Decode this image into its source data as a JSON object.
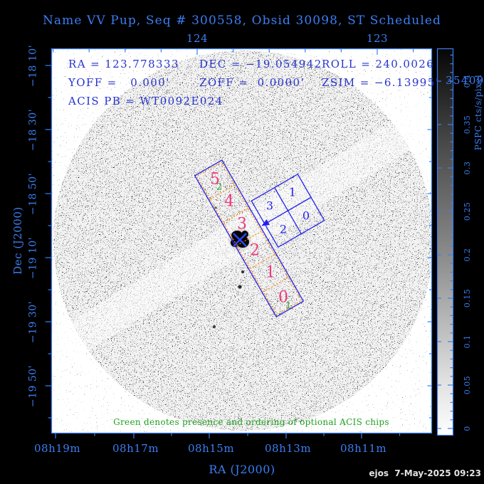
{
  "window": {
    "title_line": "Name VV Pup, Seq # 300558, Obsid 30098, ST Scheduled",
    "stamp": "ejos  7-May-2025 09:23"
  },
  "info": {
    "ra": "RA = 123.778333",
    "dec": "DEC = −19.054942",
    "roll": "ROLL = 240.0026",
    "yoff": "YOFF =   0.000'",
    "zoff": "ZOFF =  0.0000'",
    "zsim": "ZSIM = −6.13995'",
    "acis_pb": "ACIS PB = WT0092E024",
    "edge_value": "35409"
  },
  "axes": {
    "xlabel": "RA (J2000)",
    "ylabel": "Dec (J2000)",
    "top_tick_labels": [
      "124",
      "123"
    ],
    "bottom_tick_labels": [
      "08h19m",
      "08h17m",
      "08h15m",
      "08h13m",
      "08h11m"
    ],
    "left_tick_labels": [
      "−18 10'",
      "−18 30'",
      "−18 50'",
      "−19 10'",
      "−19 30'",
      "−19 50'"
    ]
  },
  "colorbar": {
    "label": "PSPC cts/s/pixel",
    "tick_labels": [
      "0.4",
      "0.35",
      "0.3",
      "0.25",
      "0.2",
      "0.15",
      "0.1",
      "0.05",
      "0"
    ]
  },
  "overlay": {
    "acis_s_chip_labels": [
      "5",
      "4",
      "3",
      "2",
      "1",
      "0"
    ],
    "acis_i_chip_labels": [
      "3",
      "1",
      "2",
      "0"
    ],
    "green_order_marks": [
      "2",
      "1"
    ],
    "green_note": "Green denotes presence and ordering of optional ACIS chips"
  },
  "colors": {
    "axis_blue": "#3b7ef2",
    "pen_blue": "#2222ee",
    "info_blue": "#2633cc",
    "chip_orange": "#ff8c00",
    "chip_pink": "#ef3a7c",
    "optional_green": "#1fa11f"
  },
  "chart_data": {
    "type": "heatmap",
    "title": "Name VV Pup, Seq # 300558, Obsid 30098, ST Scheduled",
    "xlabel": "RA (J2000)",
    "ylabel": "Dec (J2000)",
    "x_tick_labels_bottom": [
      "08h19m",
      "08h17m",
      "08h15m",
      "08h13m",
      "08h11m"
    ],
    "x_tick_labels_top_deg": [
      124,
      123
    ],
    "y_tick_labels": [
      "−18 10'",
      "−18 30'",
      "−18 50'",
      "−19 10'",
      "−19 30'",
      "−19 50'"
    ],
    "colorbar": {
      "label": "PSPC cts/s/pixel",
      "range": [
        0,
        0.4
      ],
      "tick_step": 0.05,
      "scale": "gray, dark=max"
    },
    "image_description": "ROSAT PSPC counts image: circular field of view of grainy noise on white, bright black point source at the aimpoint marked with a blue X",
    "target": {
      "name": "VV Pup",
      "ra_deg": 123.778333,
      "dec_deg": -19.054942,
      "roll_deg": 240.0026,
      "zsim_arcmin": -6.13995
    },
    "overlays": [
      {
        "name": "ACIS-S array",
        "chips": [
          "5",
          "4",
          "3",
          "2",
          "1",
          "0"
        ],
        "outline": "blue",
        "chip_grid": "orange dotted",
        "label_color": "pink"
      },
      {
        "name": "ACIS-I array",
        "chips": [
          "3",
          "1",
          "2",
          "0"
        ],
        "outline": "blue",
        "label_color": "blue"
      }
    ],
    "annotations": [
      "Green denotes presence and ordering of optional ACIS chips"
    ]
  }
}
